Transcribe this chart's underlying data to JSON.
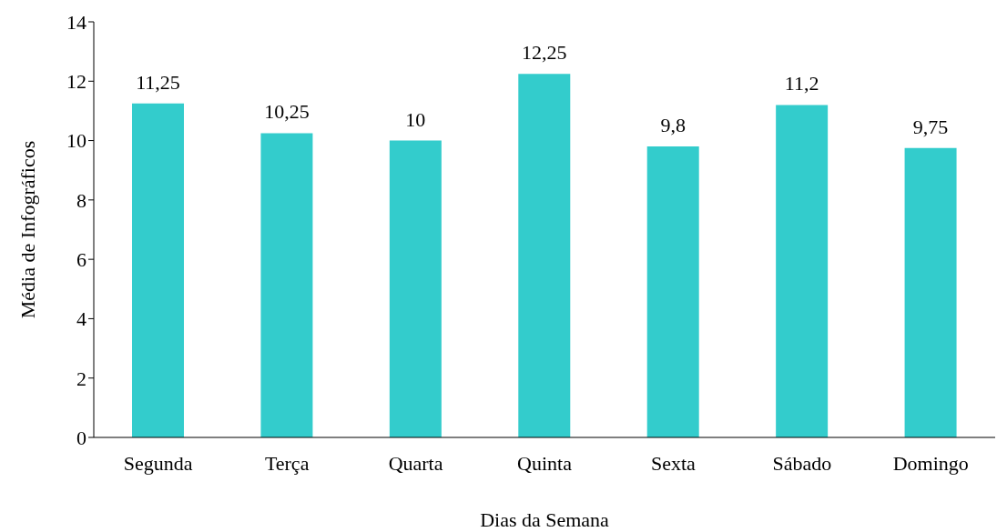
{
  "chart_data": {
    "type": "bar",
    "xlabel": "Dias da Semana",
    "ylabel": "Média de Infográficos",
    "categories": [
      "Segunda",
      "Terça",
      "Quarta",
      "Quinta",
      "Sexta",
      "Sábado",
      "Domingo"
    ],
    "values": [
      11.25,
      10.25,
      10,
      12.25,
      9.8,
      11.2,
      9.75
    ],
    "value_labels": [
      "11,25",
      "10,25",
      "10",
      "12,25",
      "9,8",
      "11,2",
      "9,75"
    ],
    "color": "#33cccc",
    "ylim": [
      0,
      14
    ],
    "yticks": [
      0,
      2,
      4,
      6,
      8,
      10,
      12,
      14
    ],
    "grid": false,
    "legend": false
  }
}
